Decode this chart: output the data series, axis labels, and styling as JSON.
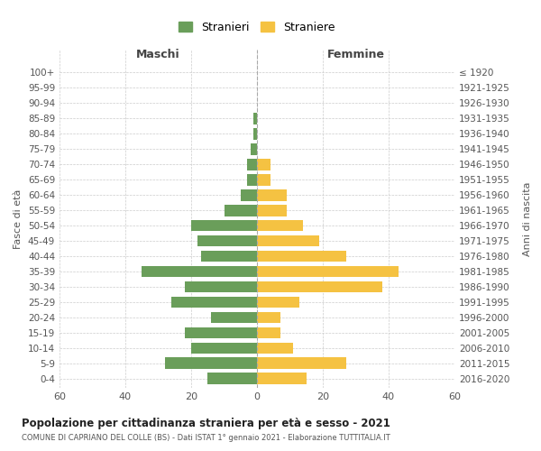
{
  "age_groups": [
    "0-4",
    "5-9",
    "10-14",
    "15-19",
    "20-24",
    "25-29",
    "30-34",
    "35-39",
    "40-44",
    "45-49",
    "50-54",
    "55-59",
    "60-64",
    "65-69",
    "70-74",
    "75-79",
    "80-84",
    "85-89",
    "90-94",
    "95-99",
    "100+"
  ],
  "birth_years": [
    "2016-2020",
    "2011-2015",
    "2006-2010",
    "2001-2005",
    "1996-2000",
    "1991-1995",
    "1986-1990",
    "1981-1985",
    "1976-1980",
    "1971-1975",
    "1966-1970",
    "1961-1965",
    "1956-1960",
    "1951-1955",
    "1946-1950",
    "1941-1945",
    "1936-1940",
    "1931-1935",
    "1926-1930",
    "1921-1925",
    "≤ 1920"
  ],
  "males": [
    15,
    28,
    20,
    22,
    14,
    26,
    22,
    35,
    17,
    18,
    20,
    10,
    5,
    3,
    3,
    2,
    1,
    1,
    0,
    0,
    0
  ],
  "females": [
    15,
    27,
    11,
    7,
    7,
    13,
    38,
    43,
    27,
    19,
    14,
    9,
    9,
    4,
    4,
    0,
    0,
    0,
    0,
    0,
    0
  ],
  "male_color": "#6a9e5a",
  "female_color": "#f5c242",
  "title": "Popolazione per cittadinanza straniera per età e sesso - 2021",
  "subtitle": "COMUNE DI CAPRIANO DEL COLLE (BS) - Dati ISTAT 1° gennaio 2021 - Elaborazione TUTTITALIA.IT",
  "ylabel_left": "Fasce di età",
  "ylabel_right": "Anni di nascita",
  "xlabel_left": "Maschi",
  "xlabel_right": "Femmine",
  "xlim": 60,
  "legend_stranieri": "Stranieri",
  "legend_straniere": "Straniere",
  "background_color": "#ffffff",
  "grid_color": "#cccccc"
}
